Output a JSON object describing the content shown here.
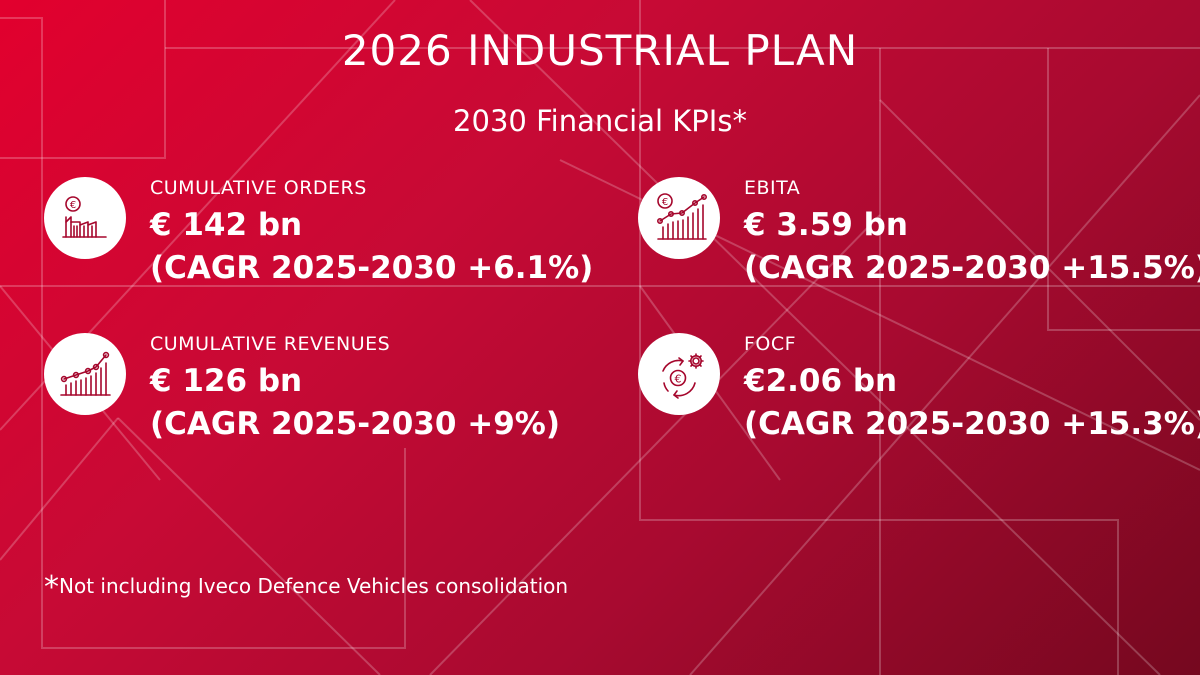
{
  "header": {
    "title": "2026 INDUSTRIAL PLAN",
    "subtitle": "2030 Financial KPIs*"
  },
  "kpis": [
    {
      "label": "CUMULATIVE ORDERS",
      "value": "€ 142 bn",
      "cagr": "(CAGR 2025-2030 +6.1%)",
      "icon": "euro-bar-chart-icon"
    },
    {
      "label": "EBITA",
      "value": "€ 3.59 bn",
      "cagr": "(CAGR 2025-2030 +15.5%)",
      "icon": "euro-growth-chart-icon"
    },
    {
      "label": "CUMULATIVE REVENUES",
      "value": "€ 126 bn",
      "cagr": "(CAGR 2025-2030 +9%)",
      "icon": "growth-chart-icon"
    },
    {
      "label": "FOCF",
      "value": "€2.06 bn",
      "cagr": "(CAGR 2025-2030 +15.3%)",
      "icon": "euro-cycle-gear-icon"
    }
  ],
  "footnote": {
    "mark": "*",
    "text": "Not including Iveco Defence Vehicles consolidation"
  },
  "colors": {
    "background_start": "#e2002e",
    "background_end": "#75081f",
    "icon_stroke": "#a5062c",
    "text": "#ffffff"
  }
}
